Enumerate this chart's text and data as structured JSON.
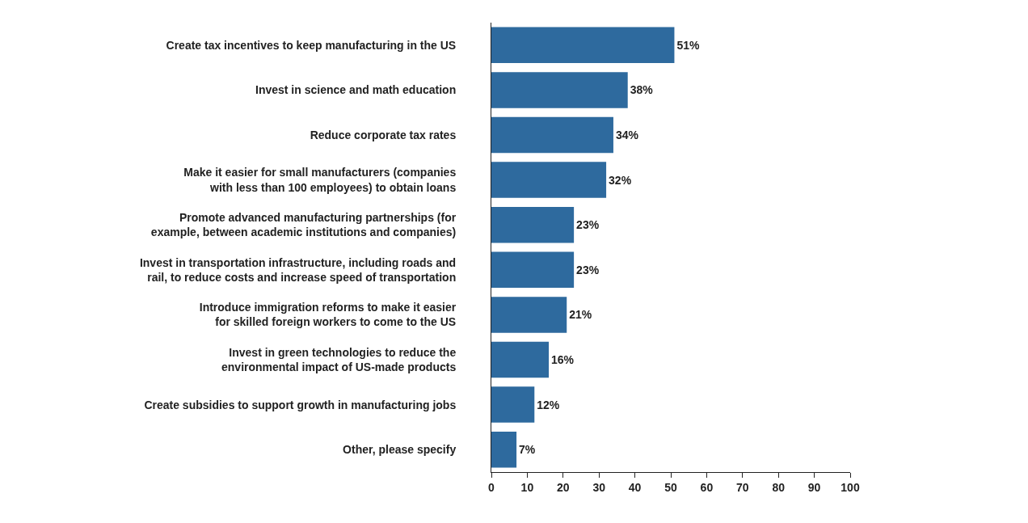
{
  "chart_data": {
    "type": "bar",
    "orientation": "horizontal",
    "categories": [
      "Create tax incentives to keep manufacturing in the US",
      "Invest in science and math education",
      "Reduce corporate tax rates",
      "Make it easier for small manufacturers (companies\nwith less than 100 employees) to obtain loans",
      "Promote advanced manufacturing partnerships (for\nexample, between academic institutions and companies)",
      "Invest in transportation infrastructure, including roads and\nrail, to reduce costs and increase speed of transportation",
      "Introduce immigration reforms to make it easier\nfor skilled foreign workers to come to the US",
      "Invest in green technologies to reduce the\nenvironmental impact of US-made products",
      "Create subsidies to support growth in manufacturing jobs",
      "Other, please specify"
    ],
    "values": [
      51,
      38,
      34,
      32,
      23,
      23,
      21,
      16,
      12,
      7
    ],
    "value_labels": [
      "51%",
      "38%",
      "34%",
      "32%",
      "23%",
      "23%",
      "21%",
      "16%",
      "12%",
      "7%"
    ],
    "color": "#2e6a9e",
    "xlim": [
      0,
      100
    ],
    "xticks": [
      0,
      10,
      20,
      30,
      40,
      50,
      60,
      70,
      80,
      90,
      100
    ],
    "grid": false,
    "legend": false
  }
}
